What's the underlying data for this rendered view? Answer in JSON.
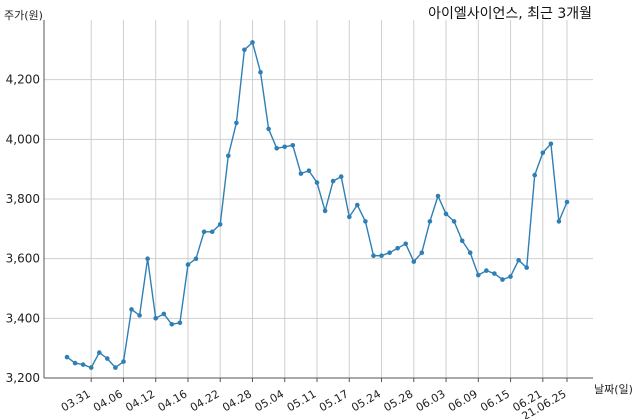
{
  "chart_data": {
    "type": "line",
    "title": "아이엘사이언스, 최근 3개월",
    "ylabel": "주가(원)",
    "xlabel": "날짜(일)",
    "ylim": [
      3200,
      4400
    ],
    "yticks": [
      3200,
      3400,
      3600,
      3800,
      4000,
      4200
    ],
    "ytick_labels": [
      "3,200",
      "3,400",
      "3,600",
      "3,800",
      "4,000",
      "4,200"
    ],
    "x_labels": [
      "03.31",
      "04.06",
      "04.12",
      "04.16",
      "04.22",
      "04.28",
      "05.04",
      "05.11",
      "05.17",
      "05.24",
      "05.28",
      "06.03",
      "06.09",
      "06.15",
      "06.21",
      "21.06.25"
    ],
    "x_label_positions": [
      3,
      7,
      11,
      15,
      19,
      23,
      27,
      31,
      35,
      39,
      43,
      47,
      51,
      55,
      59,
      62
    ],
    "grid": true,
    "series": [
      {
        "color": "#2e7fb5",
        "values": [
          3270,
          3250,
          3245,
          3235,
          3285,
          3265,
          3235,
          3255,
          3430,
          3410,
          3600,
          3400,
          3415,
          3380,
          3385,
          3580,
          3600,
          3690,
          3690,
          3715,
          3945,
          4055,
          4300,
          4325,
          4225,
          4035,
          3970,
          3975,
          3980,
          3885,
          3895,
          3855,
          3760,
          3860,
          3875,
          3740,
          3780,
          3725,
          3610,
          3610,
          3620,
          3635,
          3650,
          3590,
          3620,
          3725,
          3810,
          3750,
          3725,
          3660,
          3620,
          3545,
          3560,
          3550,
          3530,
          3540,
          3595,
          3570,
          3880,
          3955,
          3985,
          3725,
          3790
        ]
      }
    ]
  }
}
